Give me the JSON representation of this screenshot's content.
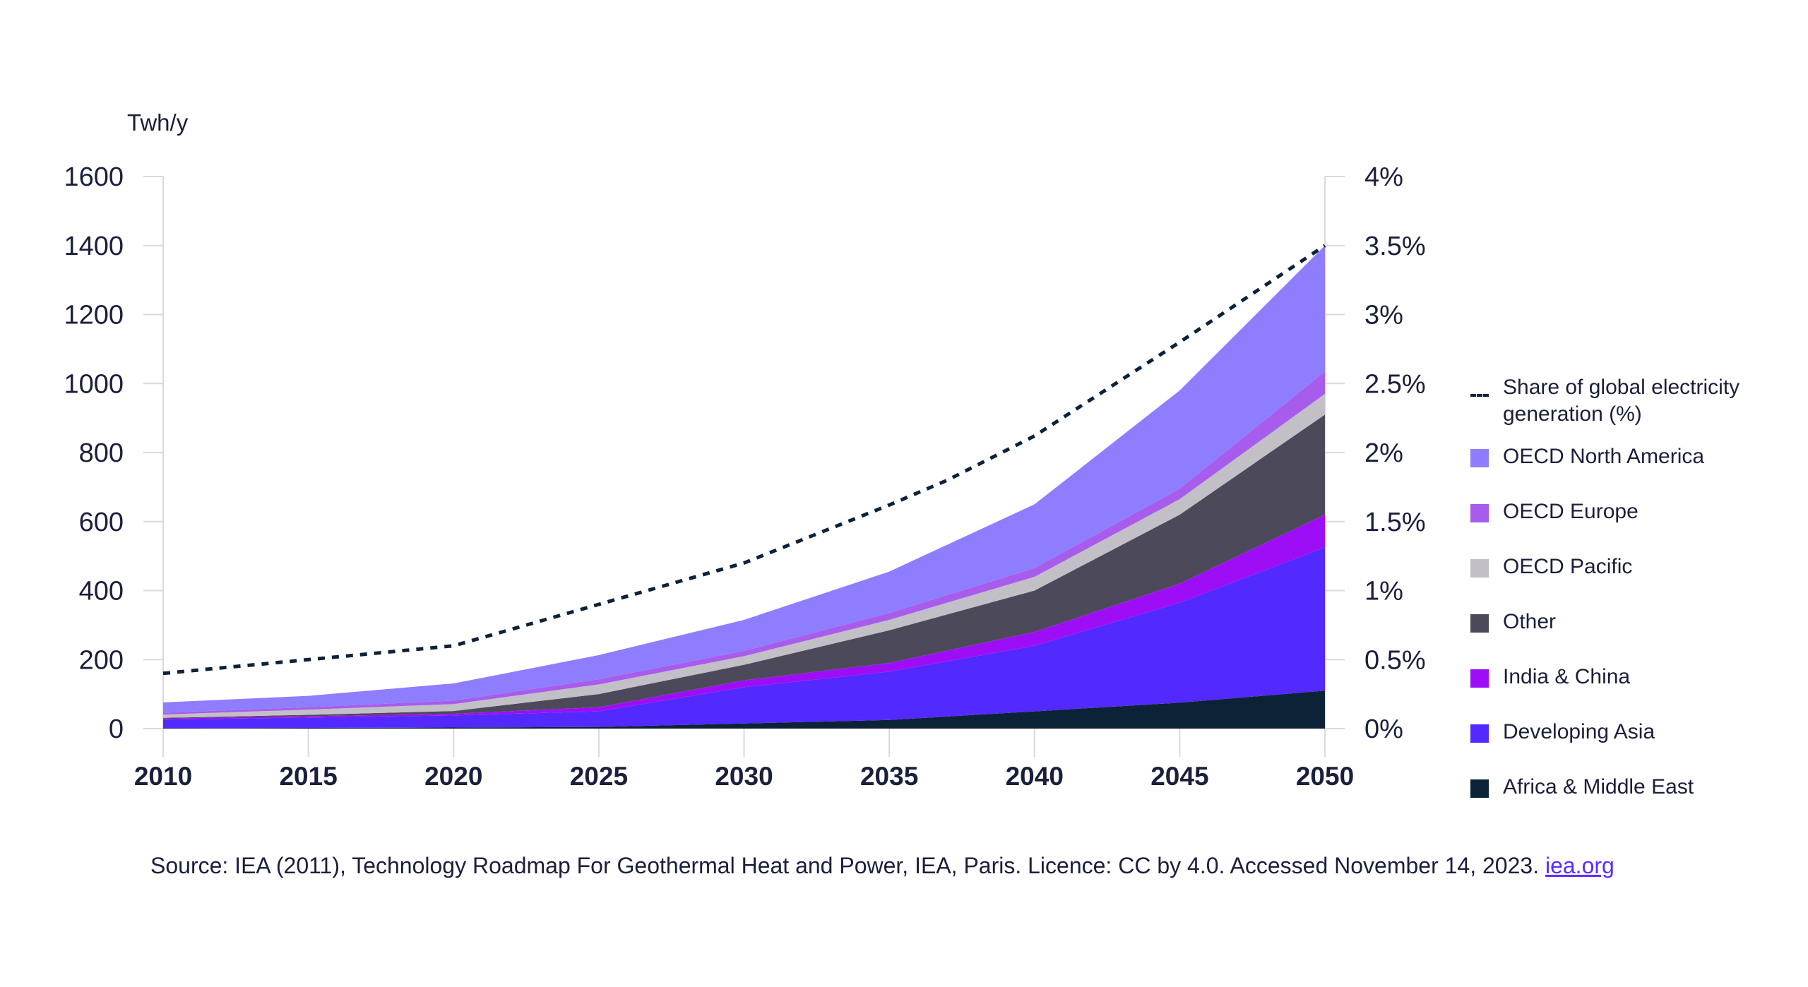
{
  "chart_data": {
    "type": "area",
    "stacked": true,
    "ylabel": "Twh/y",
    "x": [
      2010,
      2015,
      2020,
      2025,
      2030,
      2035,
      2040,
      2045,
      2050
    ],
    "ylim": [
      0,
      1600
    ],
    "y_ticks": [
      "0",
      "200",
      "400",
      "600",
      "800",
      "1000",
      "1200",
      "1400",
      "1600"
    ],
    "y2lim": [
      0,
      4
    ],
    "y2_ticks": [
      "0%",
      "0.5%",
      "1%",
      "1.5%",
      "2%",
      "2.5%",
      "3%",
      "3.5%",
      "4%"
    ],
    "x_ticks": [
      "2010",
      "2015",
      "2020",
      "2025",
      "2030",
      "2035",
      "2040",
      "2045",
      "2050"
    ],
    "series": [
      {
        "name": "Africa & Middle East",
        "color": "#0c2236",
        "values": [
          1,
          2,
          3,
          5,
          15,
          25,
          50,
          75,
          110
        ]
      },
      {
        "name": "Developing Asia",
        "color": "#5229ff",
        "values": [
          25,
          30,
          35,
          45,
          105,
          140,
          190,
          290,
          415
        ]
      },
      {
        "name": "India & China",
        "color": "#9d0ef7",
        "values": [
          3,
          4,
          5,
          12,
          20,
          25,
          40,
          55,
          95
        ]
      },
      {
        "name": "Other",
        "color": "#4c4a5a",
        "values": [
          2,
          4,
          8,
          38,
          45,
          95,
          120,
          200,
          290
        ]
      },
      {
        "name": "OECD Pacific",
        "color": "#c2bfc7",
        "values": [
          10,
          15,
          20,
          28,
          25,
          30,
          40,
          45,
          60
        ]
      },
      {
        "name": "OECD Europe",
        "color": "#a75cec",
        "values": [
          5,
          7,
          10,
          15,
          15,
          20,
          25,
          30,
          65
        ]
      },
      {
        "name": "OECD North America",
        "color": "#8f7dff",
        "values": [
          30,
          33,
          50,
          70,
          90,
          120,
          185,
          285,
          365
        ]
      }
    ],
    "line_series": {
      "name": "Share of global electricity generation (%)",
      "axis": "right",
      "color": "#0d2238",
      "style": "dashed",
      "x": [
        2010,
        2015,
        2020,
        2025,
        2030,
        2035,
        2037,
        2040,
        2045,
        2050
      ],
      "values": [
        0.4,
        0.5,
        0.6,
        0.9,
        1.2,
        1.62,
        1.8,
        2.12,
        2.8,
        3.5
      ]
    },
    "legend_position": "right"
  },
  "legend": {
    "items": [
      {
        "label": "Share of global electricity generation (%)",
        "type": "dashed",
        "color": "#0d2238"
      },
      {
        "label": "OECD North America",
        "type": "box",
        "color": "#8f7dff"
      },
      {
        "label": "OECD Europe",
        "type": "box",
        "color": "#a75cec"
      },
      {
        "label": "OECD Pacific",
        "type": "box",
        "color": "#c2bfc7"
      },
      {
        "label": "Other",
        "type": "box",
        "color": "#4c4a5a"
      },
      {
        "label": "India & China",
        "type": "box",
        "color": "#9d0ef7"
      },
      {
        "label": "Developing Asia",
        "type": "box",
        "color": "#5229ff"
      },
      {
        "label": "Africa & Middle East",
        "type": "box",
        "color": "#0c2236"
      }
    ]
  },
  "source": {
    "text": "Source: IEA (2011), Technology Roadmap For Geothermal Heat and Power, IEA, Paris. Licence: CC by 4.0. Accessed November 14, 2023.",
    "link_text": "iea.org"
  }
}
